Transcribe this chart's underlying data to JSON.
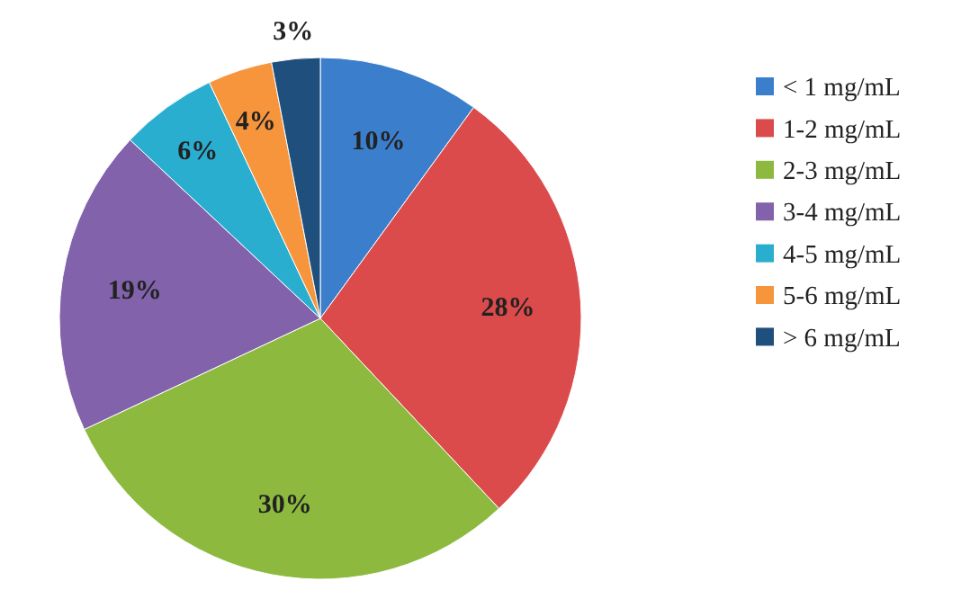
{
  "chart_data": {
    "type": "pie",
    "categories": [
      "< 1 mg/mL",
      "1-2 mg/mL",
      "2-3 mg/mL",
      "3-4 mg/mL",
      "4-5 mg/mL",
      "5-6 mg/mL",
      "> 6 mg/mL"
    ],
    "values": [
      10,
      28,
      30,
      19,
      6,
      4,
      3
    ],
    "colors": [
      "#3b7fcc",
      "#dc4b4b",
      "#8dba3e",
      "#8262ab",
      "#2aaed0",
      "#f7953c",
      "#1f4f7d"
    ],
    "value_labels": [
      "10%",
      "28%",
      "30%",
      "19%",
      "6%",
      "4%",
      "3%"
    ],
    "legend": "right"
  }
}
